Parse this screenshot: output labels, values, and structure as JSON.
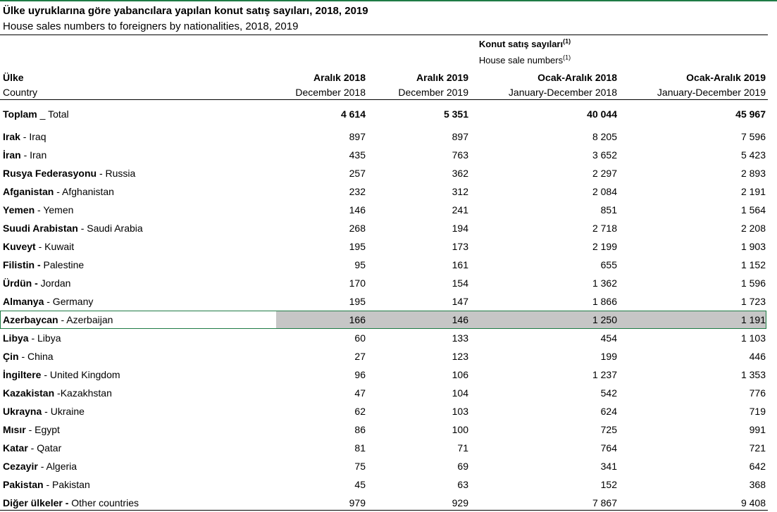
{
  "title": "Ülke uyruklarına göre yabancılara yapılan konut satış sayıları, 2018, 2019",
  "subtitle": "House sales numbers to foreigners by nationalities, 2018, 2019",
  "header": {
    "group_tr": "Konut satış sayıları",
    "group_en": "House sale numbers",
    "note": "(1)",
    "country_tr": "Ülke",
    "country_en": "Country",
    "columns": [
      {
        "tr": "Aralık 2018",
        "en": "December 2018"
      },
      {
        "tr": "Aralık 2019",
        "en": "December 2019"
      },
      {
        "tr": "Ocak-Aralık 2018",
        "en": "January-December 2018"
      },
      {
        "tr": "Ocak-Aralık 2019",
        "en": "January-December 2019"
      }
    ]
  },
  "table": {
    "total": {
      "name": "Toplam",
      "label": " _ Total",
      "values": [
        "4 614",
        "5 351",
        "40 044",
        "45 967"
      ]
    },
    "selected_row": 10,
    "rows": [
      {
        "name": "Irak",
        "label": " - Iraq",
        "values": [
          "897",
          "897",
          "8 205",
          "7 596"
        ]
      },
      {
        "name": "İran",
        "label": " - Iran",
        "values": [
          "435",
          "763",
          "3 652",
          "5 423"
        ]
      },
      {
        "name": "Rusya Federasyonu",
        "label": " - Russia",
        "values": [
          "257",
          "362",
          "2 297",
          "2 893"
        ]
      },
      {
        "name": "Afganistan",
        "label": " - Afghanistan",
        "values": [
          "232",
          "312",
          "2 084",
          "2 191"
        ]
      },
      {
        "name": "Yemen",
        "label": " - Yemen",
        "values": [
          "146",
          "241",
          "851",
          "1 564"
        ]
      },
      {
        "name": "Suudi Arabistan",
        "label": " - Saudi Arabia",
        "values": [
          "268",
          "194",
          "2 718",
          "2 208"
        ]
      },
      {
        "name": "Kuveyt",
        "label": " - Kuwait",
        "values": [
          "195",
          "173",
          "2 199",
          "1 903"
        ]
      },
      {
        "name": "Filistin -",
        "label": " Palestine",
        "values": [
          "95",
          "161",
          "655",
          "1 152"
        ]
      },
      {
        "name": "Ürdün -",
        "label": " Jordan",
        "values": [
          "170",
          "154",
          "1 362",
          "1 596"
        ]
      },
      {
        "name": "Almanya",
        "label": " - Germany",
        "values": [
          "195",
          "147",
          "1 866",
          "1 723"
        ]
      },
      {
        "name": "Azerbaycan",
        "label": " - Azerbaijan",
        "values": [
          "166",
          "146",
          "1 250",
          "1 191"
        ]
      },
      {
        "name": "Libya",
        "label": " - Libya",
        "values": [
          "60",
          "133",
          "454",
          "1 103"
        ]
      },
      {
        "name": "Çin",
        "label": " - China",
        "values": [
          "27",
          "123",
          "199",
          "446"
        ]
      },
      {
        "name": "İngiltere",
        "label": " - United Kingdom",
        "values": [
          "96",
          "106",
          "1 237",
          "1 353"
        ]
      },
      {
        "name": "Kazakistan",
        "label": " -Kazakhstan",
        "values": [
          "47",
          "104",
          "542",
          "776"
        ]
      },
      {
        "name": "Ukrayna",
        "label": " - Ukraine",
        "values": [
          "62",
          "103",
          "624",
          "719"
        ]
      },
      {
        "name": "Mısır",
        "label": " - Egypt",
        "values": [
          "86",
          "100",
          "725",
          "991"
        ]
      },
      {
        "name": "Katar",
        "label": " - Qatar",
        "values": [
          "81",
          "71",
          "764",
          "721"
        ]
      },
      {
        "name": "Cezayir",
        "label": " - Algeria",
        "values": [
          "75",
          "69",
          "341",
          "642"
        ]
      },
      {
        "name": "Pakistan",
        "label": " - Pakistan",
        "values": [
          "45",
          "63",
          "152",
          "368"
        ]
      },
      {
        "name": "Diğer ülkeler -",
        "label": " Other countries",
        "values": [
          "979",
          "929",
          "7 867",
          "9 408"
        ]
      }
    ]
  }
}
